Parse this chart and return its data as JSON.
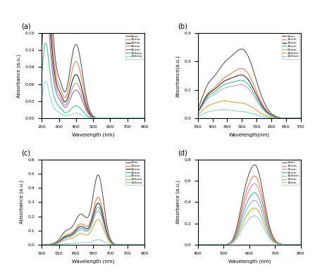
{
  "legend_labels": [
    "0min",
    "10min",
    "20min",
    "40min",
    "80min",
    "160min",
    "320min"
  ],
  "panel_a": {
    "xlabel": "Wavelength (nm)",
    "ylabel": "Absorbance (a.u.)",
    "xlim": [
      200,
      800
    ],
    "ylim": [
      0,
      0.15
    ],
    "colors": [
      "#444444",
      "#e07040",
      "#111111",
      "#c08090",
      "#8060a0",
      "#40b090",
      "#90d0d0"
    ],
    "peak1_y": [
      0.148,
      0.12,
      0.1,
      0.085,
      0.072,
      0.045,
      0.022
    ],
    "peak2_y": [
      0.13,
      0.1,
      0.077,
      0.062,
      0.05,
      0.022,
      0.009
    ]
  },
  "panel_b": {
    "xlabel": "Wavelength(nm)",
    "ylabel": "Absorbance(a.u.)",
    "xlim": [
      350,
      700
    ],
    "ylim": [
      0,
      0.3
    ],
    "colors": [
      "#444444",
      "#e07040",
      "#111111",
      "#40a090",
      "#a0a0c0",
      "#c0a030",
      "#80c8d0"
    ],
    "peak1_y": [
      0.13,
      0.095,
      0.09,
      0.083,
      0.075,
      0.048,
      0.025
    ],
    "peak2_y": [
      0.233,
      0.168,
      0.145,
      0.127,
      0.112,
      0.05,
      0.022
    ]
  },
  "panel_c": {
    "xlabel": "Wavelength (nm)",
    "ylabel": "Absorbance (a.u.)",
    "xlim": [
      500,
      800
    ],
    "ylim": [
      0,
      0.6
    ],
    "colors": [
      "#444444",
      "#e07040",
      "#111111",
      "#40a090",
      "#a0a0c0",
      "#c0a030",
      "#80c8d0"
    ],
    "peak_y": [
      0.485,
      0.33,
      0.29,
      0.26,
      0.235,
      0.175,
      0.035
    ]
  },
  "panel_d": {
    "xlabel": "Wavelength (nm)",
    "ylabel": "Absorbance (a.u.)",
    "xlim": [
      400,
      800
    ],
    "ylim": [
      0,
      0.8
    ],
    "legend_labels": [
      "0min",
      "15min",
      "25min",
      "80min",
      "100min",
      "30min",
      "10min"
    ],
    "colors": [
      "#444444",
      "#e07040",
      "#c08090",
      "#40a090",
      "#a0a0c0",
      "#c0a030",
      "#80c8d0"
    ],
    "peak_y": [
      0.72,
      0.62,
      0.55,
      0.47,
      0.4,
      0.33,
      0.26
    ]
  }
}
